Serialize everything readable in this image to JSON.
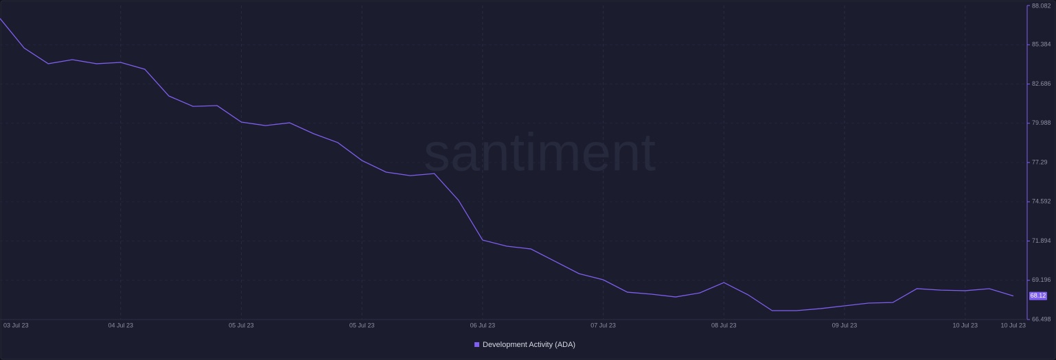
{
  "chart_data": {
    "type": "line",
    "watermark": "santiment",
    "categories": [
      "03 Jul 23",
      null,
      null,
      null,
      null,
      "04 Jul 23",
      null,
      null,
      null,
      null,
      "05 Jul 23",
      null,
      null,
      null,
      null,
      "05 Jul 23",
      null,
      null,
      null,
      null,
      "06 Jul 23",
      null,
      null,
      null,
      null,
      "07 Jul 23",
      null,
      null,
      null,
      null,
      "08 Jul 23",
      null,
      null,
      null,
      null,
      "09 Jul 23",
      null,
      null,
      null,
      null,
      "10 Jul 23",
      null,
      "10 Jul 23"
    ],
    "series": [
      {
        "name": "Development Activity (ADA)",
        "color": "#7f5ff0",
        "values": [
          87.19,
          85.16,
          84.08,
          84.36,
          84.08,
          84.17,
          83.7,
          81.86,
          81.15,
          81.2,
          80.07,
          79.83,
          80.02,
          79.27,
          78.66,
          77.43,
          76.63,
          76.39,
          76.53,
          74.7,
          71.96,
          71.54,
          71.35,
          70.5,
          69.65,
          69.23,
          68.38,
          68.24,
          68.05,
          68.33,
          69.04,
          68.2,
          67.11,
          67.11,
          67.25,
          67.44,
          67.63,
          67.67,
          68.62,
          68.52,
          68.48,
          68.62,
          68.12
        ]
      }
    ],
    "last_value": 68.12,
    "ylim": [
      66.498,
      88.082
    ],
    "yticks": [
      66.498,
      69.196,
      71.894,
      74.592,
      77.29,
      79.988,
      82.686,
      85.384,
      88.082
    ],
    "grid": true
  }
}
